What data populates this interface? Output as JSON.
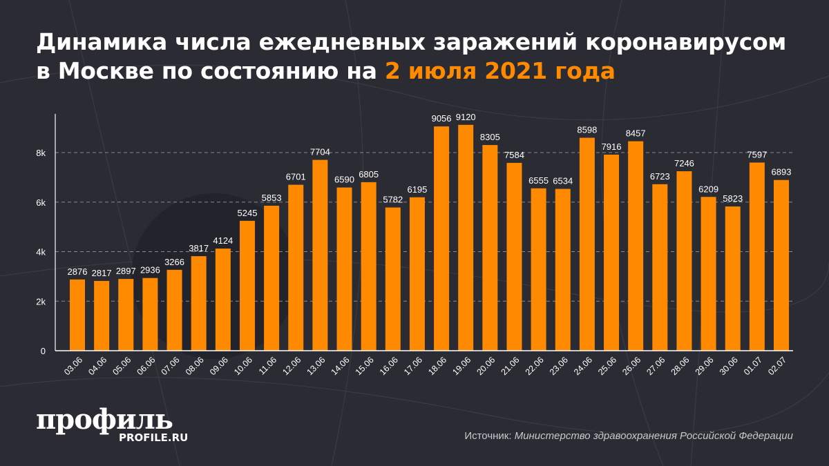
{
  "title": {
    "line1": "Динамика числа ежедневных заражений коронавирусом",
    "line2_prefix": "в Москве по состоянию на ",
    "line2_highlight": "2 июля 2021 года"
  },
  "colors": {
    "bar": "#ff8a00",
    "background": "#2b2b33",
    "highlight": "#ff8a00",
    "grid": "#8a8a90"
  },
  "chart_data": {
    "type": "bar",
    "categories": [
      "03.06",
      "04.06",
      "05.06",
      "06.06",
      "07.06",
      "08.06",
      "09.06",
      "10.06",
      "11.06",
      "12.06",
      "13.06",
      "14.06",
      "15.06",
      "16.06",
      "17.06",
      "18.06",
      "19.06",
      "20.06",
      "21.06",
      "22.06",
      "23.06",
      "24.06",
      "25.06",
      "26.06",
      "27.06",
      "28.06",
      "29.06",
      "30.06",
      "01.07",
      "02.07"
    ],
    "values": [
      2876,
      2817,
      2897,
      2936,
      3266,
      3817,
      4124,
      5245,
      5853,
      6701,
      7704,
      6590,
      6805,
      5782,
      6195,
      9056,
      9120,
      8305,
      7584,
      6555,
      6534,
      8598,
      7916,
      8457,
      6723,
      7246,
      6209,
      5823,
      7597,
      6893
    ],
    "yticks": [
      0,
      2000,
      4000,
      6000,
      8000
    ],
    "ytick_labels": [
      "0",
      "2k",
      "4k",
      "6k",
      "8k"
    ],
    "ylim": [
      0,
      9600
    ],
    "grid": true,
    "data_labels": true
  },
  "logo": {
    "text": "профиль",
    "sub": "PROFILE.RU"
  },
  "source": {
    "label": "Источник: ",
    "name": "Министерство здравоохранения Российской Федерации"
  }
}
